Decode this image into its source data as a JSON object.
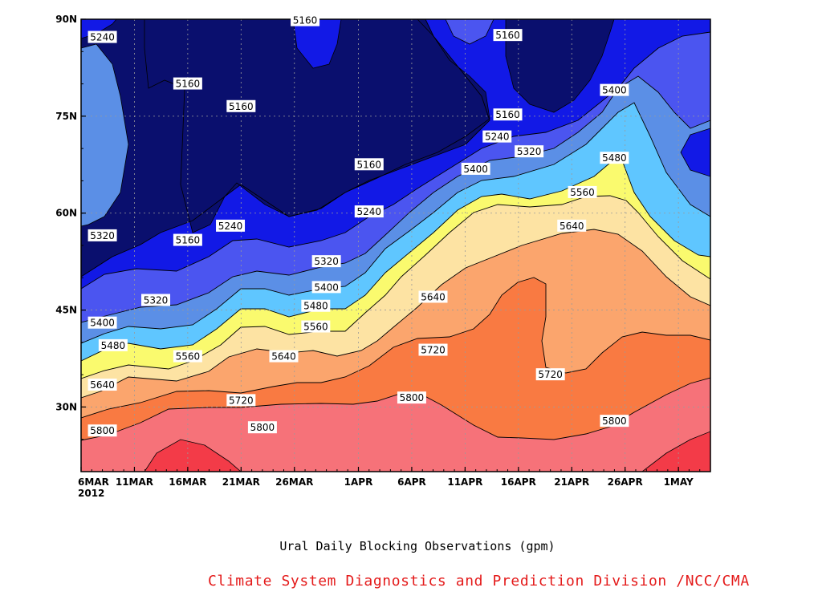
{
  "chart_data": {
    "type": "heatmap",
    "title": "Ural Daily Blocking Observations (gpm)",
    "credit": "Climate System Diagnostics and Prediction Division /NCC/CMA",
    "x_ticks": [
      "6MAR",
      "11MAR",
      "16MAR",
      "21MAR",
      "26MAR",
      "1APR",
      "6APR",
      "11APR",
      "16APR",
      "21APR",
      "26APR",
      "1MAY"
    ],
    "x_year": "2012",
    "y_ticks": [
      "30N",
      "45N",
      "60N",
      "75N",
      "90N"
    ],
    "ylim": [
      20,
      90
    ],
    "grid": true,
    "contour_levels": [
      5160,
      5240,
      5320,
      5400,
      5480,
      5560,
      5640,
      5720,
      5800
    ],
    "contour_labels": [
      {
        "text": "5160",
        "x": "27MAR",
        "y": 89.8
      },
      {
        "text": "5160",
        "x": "15APR",
        "y": 87.5
      },
      {
        "text": "5240",
        "x": "8MAR",
        "y": 87.2
      },
      {
        "text": "5160",
        "x": "16MAR",
        "y": 80.0
      },
      {
        "text": "5160",
        "x": "21MAR",
        "y": 76.5
      },
      {
        "text": "5400",
        "x": "25APR",
        "y": 79.0
      },
      {
        "text": "5160",
        "x": "15APR",
        "y": 75.2
      },
      {
        "text": "5240",
        "x": "14APR",
        "y": 71.8
      },
      {
        "text": "5320",
        "x": "17APR",
        "y": 69.5
      },
      {
        "text": "5480",
        "x": "25APR",
        "y": 68.5
      },
      {
        "text": "5160",
        "x": "2APR",
        "y": 67.5
      },
      {
        "text": "5400",
        "x": "12APR",
        "y": 66.8
      },
      {
        "text": "5560",
        "x": "22APR",
        "y": 63.2
      },
      {
        "text": "5240",
        "x": "2APR",
        "y": 60.2
      },
      {
        "text": "5240",
        "x": "20MAR",
        "y": 58.0
      },
      {
        "text": "5640",
        "x": "21APR",
        "y": 58.0
      },
      {
        "text": "5320",
        "x": "8MAR",
        "y": 56.5
      },
      {
        "text": "5160",
        "x": "16MAR",
        "y": 55.8
      },
      {
        "text": "5320",
        "x": "29MAR",
        "y": 52.5
      },
      {
        "text": "5400",
        "x": "29MAR",
        "y": 48.5
      },
      {
        "text": "5320",
        "x": "13MAR",
        "y": 46.5
      },
      {
        "text": "5640",
        "x": "8APR",
        "y": 47.0
      },
      {
        "text": "5480",
        "x": "28MAR",
        "y": 45.6
      },
      {
        "text": "5400",
        "x": "8MAR",
        "y": 43.0
      },
      {
        "text": "5560",
        "x": "28MAR",
        "y": 42.4
      },
      {
        "text": "5480",
        "x": "9MAR",
        "y": 39.5
      },
      {
        "text": "5720",
        "x": "8APR",
        "y": 38.8
      },
      {
        "text": "5560",
        "x": "16MAR",
        "y": 37.8
      },
      {
        "text": "5640",
        "x": "25MAR",
        "y": 37.8
      },
      {
        "text": "5720",
        "x": "19APR",
        "y": 35.0
      },
      {
        "text": "5640",
        "x": "8MAR",
        "y": 33.4
      },
      {
        "text": "5800",
        "x": "6APR",
        "y": 31.4
      },
      {
        "text": "5720",
        "x": "21MAR",
        "y": 31.0
      },
      {
        "text": "5800",
        "x": "25APR",
        "y": 27.8
      },
      {
        "text": "5800",
        "x": "23MAR",
        "y": 26.8
      },
      {
        "text": "5800",
        "x": "8MAR",
        "y": 26.3
      }
    ],
    "colors": {
      "below_5160": "#0a0f6e",
      "5160_5240": "#1219e6",
      "5240_5320": "#4b55f0",
      "5320_5400": "#5b8fe6",
      "5400_5480": "#5fc6ff",
      "5480_5560": "#fafa6e",
      "5560_5640": "#fde3a3",
      "5640_5720": "#fba56d",
      "5720_5800": "#f97a42",
      "5800_5880": "#f67279",
      "above_5880": "#f33b48"
    }
  }
}
